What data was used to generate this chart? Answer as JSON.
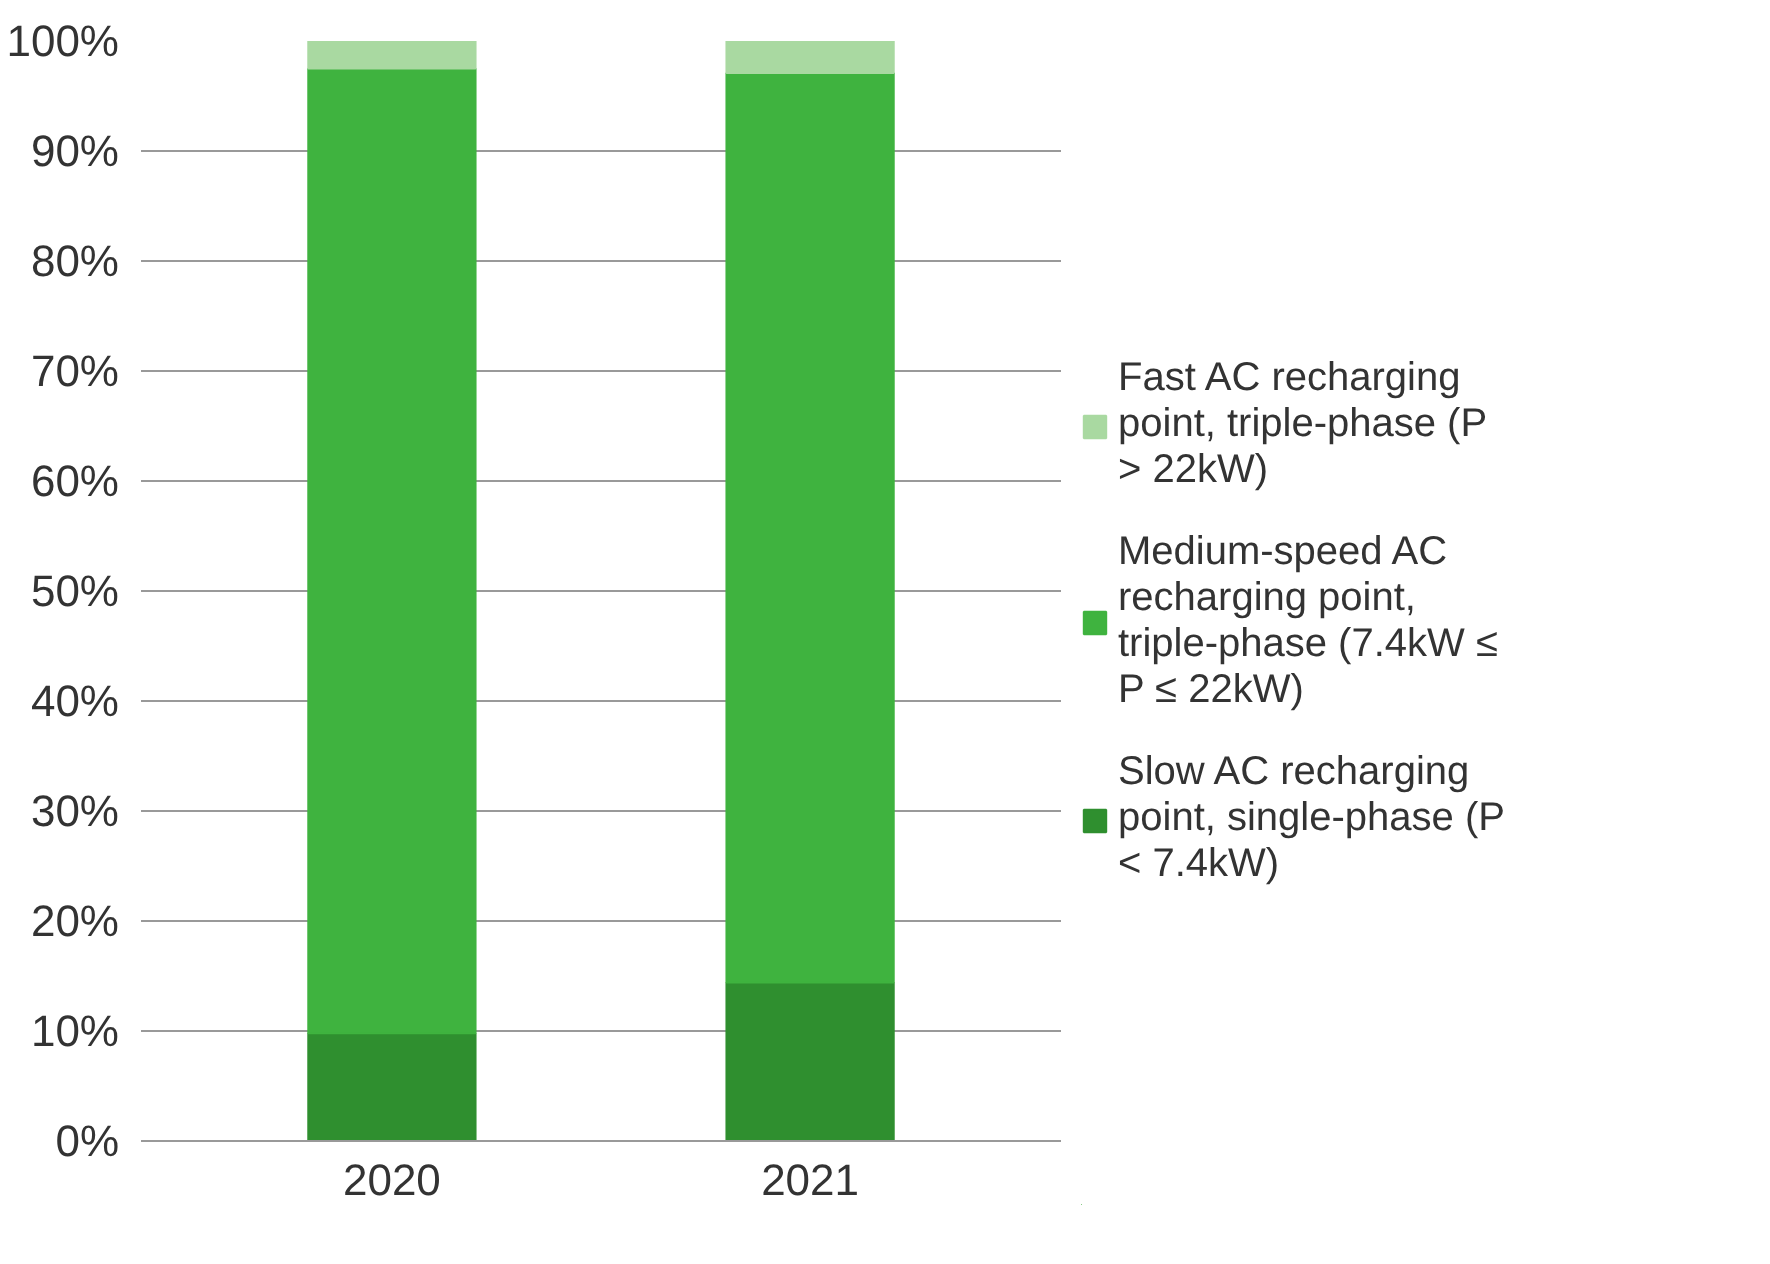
{
  "chart_data": {
    "type": "bar",
    "stacked": true,
    "categories": [
      "2020",
      "2021"
    ],
    "series": [
      {
        "name": "Slow AC recharging point, single-phase (P < 7.4kW)",
        "color": "#2f8f2f",
        "values": [
          9.8,
          14.4
        ]
      },
      {
        "name": "Medium-speed AC recharging point, triple-phase (7.4kW ≤ P ≤ 22kW)",
        "color": "#3fb33f",
        "values": [
          87.7,
          82.7
        ]
      },
      {
        "name": "Fast AC recharging point, triple-phase (P > 22kW)",
        "color": "#a9d9a1",
        "values": [
          2.5,
          2.9
        ]
      }
    ],
    "ylim": [
      0,
      100
    ],
    "yticks": [
      {
        "value": 0,
        "label": "0%"
      },
      {
        "value": 10,
        "label": "10%"
      },
      {
        "value": 20,
        "label": "20%"
      },
      {
        "value": 30,
        "label": "30%"
      },
      {
        "value": 40,
        "label": "40%"
      },
      {
        "value": 50,
        "label": "50%"
      },
      {
        "value": 60,
        "label": "60%"
      },
      {
        "value": 70,
        "label": "70%"
      },
      {
        "value": 80,
        "label": "80%"
      },
      {
        "value": 90,
        "label": "90%"
      },
      {
        "value": 100,
        "label": "100%"
      }
    ],
    "grid": "y",
    "legend": "right"
  }
}
